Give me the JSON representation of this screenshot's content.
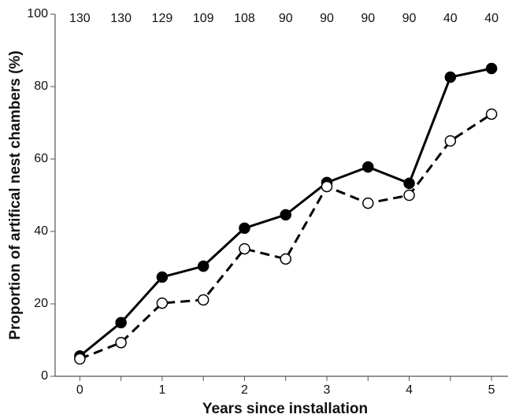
{
  "chart_data": {
    "type": "line",
    "x_label": "Years since installation",
    "y_label": "Proportion of artifical nest chambers (%)",
    "x": [
      0,
      0.5,
      1,
      1.5,
      2,
      2.5,
      3,
      3.5,
      4,
      4.5,
      5
    ],
    "sample_sizes": [
      130,
      130,
      129,
      109,
      108,
      90,
      90,
      90,
      90,
      40,
      40
    ],
    "series": [
      {
        "color": "#000000",
        "marker": "filled",
        "dashed": false,
        "values": [
          5.6,
          14.8,
          27.4,
          30.4,
          40.9,
          44.6,
          53.5,
          57.8,
          53.3,
          82.6,
          85.0
        ]
      },
      {
        "color": "#000000",
        "marker": "open",
        "dashed": true,
        "values": [
          4.8,
          9.3,
          20.2,
          21.1,
          35.2,
          32.4,
          52.4,
          47.8,
          50.0,
          65.0,
          72.4
        ]
      }
    ],
    "xlim": [
      -0.3,
      5.2
    ],
    "xticks": [
      0,
      1,
      2,
      3,
      4,
      5
    ],
    "minor_xticks": [
      0.5,
      1.5,
      2.5,
      3.5,
      4.5
    ],
    "ylim": [
      0,
      100
    ],
    "yticks": [
      0,
      20,
      40,
      60,
      80,
      100
    ]
  }
}
